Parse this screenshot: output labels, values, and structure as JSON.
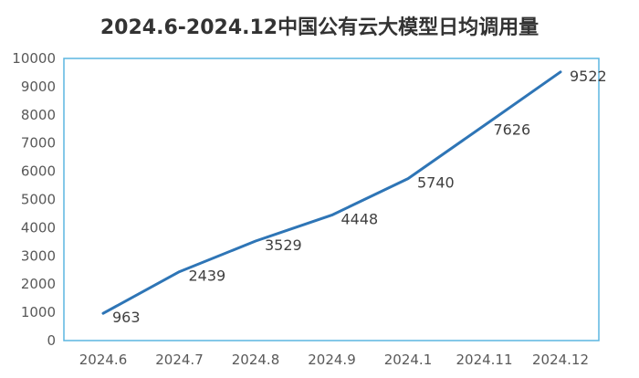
{
  "chart_data": {
    "type": "line",
    "title": "2024.6-2024.12中国公有云大模型日均调用量",
    "categories": [
      "2024.6",
      "2024.7",
      "2024.8",
      "2024.9",
      "2024.1",
      "2024.11",
      "2024.12"
    ],
    "values": [
      963,
      2439,
      3529,
      4448,
      5740,
      7626,
      9522
    ],
    "data_labels": [
      "963",
      "2439",
      "3529",
      "4448",
      "5740",
      "7626",
      "9522"
    ],
    "ylim": [
      0,
      10000
    ],
    "yticks": [
      "0",
      "1000",
      "2000",
      "3000",
      "4000",
      "5000",
      "6000",
      "7000",
      "8000",
      "9000",
      "10000"
    ],
    "line_color": "#2e75b6",
    "frame_color": "#5bb5e0",
    "grid": false,
    "legend": "none"
  }
}
